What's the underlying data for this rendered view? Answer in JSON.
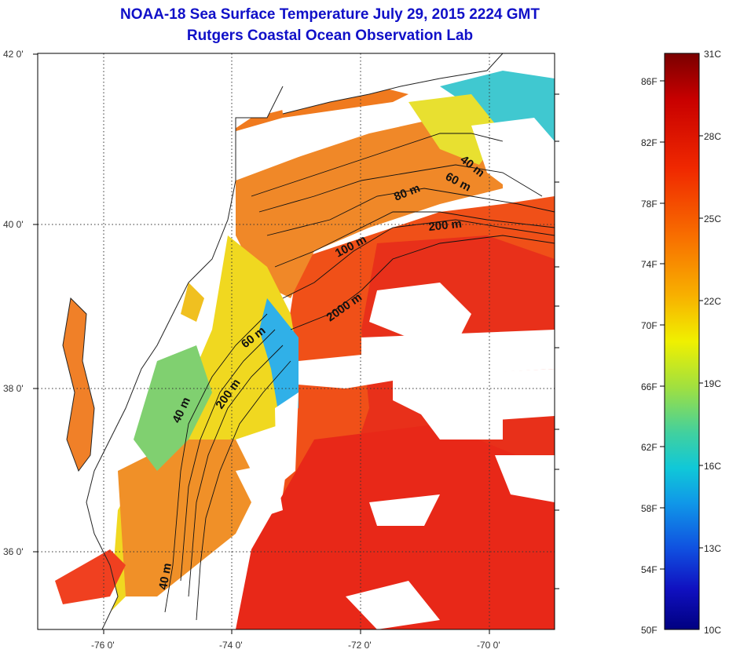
{
  "title": "NOAA-18 Sea Surface Temperature July 29, 2015 2224 GMT",
  "subtitle": "Rutgers Coastal Ocean Observation Lab",
  "y_ticks": [
    "42 0'",
    "40 0'",
    "38 0'",
    "36 0'"
  ],
  "x_ticks": [
    "-76 0'",
    "-74 0'",
    "-72 0'",
    "-70 0'"
  ],
  "isobaths": [
    "40 m",
    "60 m",
    "80 m",
    "100 m",
    "200 m",
    "2000 m",
    "60 m",
    "200 m",
    "40 m",
    "40 m"
  ],
  "colorbar": {
    "fahrenheit": [
      "86F",
      "82F",
      "78F",
      "74F",
      "70F",
      "66F",
      "62F",
      "58F",
      "54F",
      "50F"
    ],
    "celsius": [
      "31C",
      "28C",
      "25C",
      "22C",
      "19C",
      "16C",
      "13C",
      "10C"
    ]
  },
  "colors": {
    "title": "#1010c8",
    "warm": "#f03010",
    "orange": "#f08020",
    "cool": "#20a0f0",
    "land": "#ffffff"
  }
}
